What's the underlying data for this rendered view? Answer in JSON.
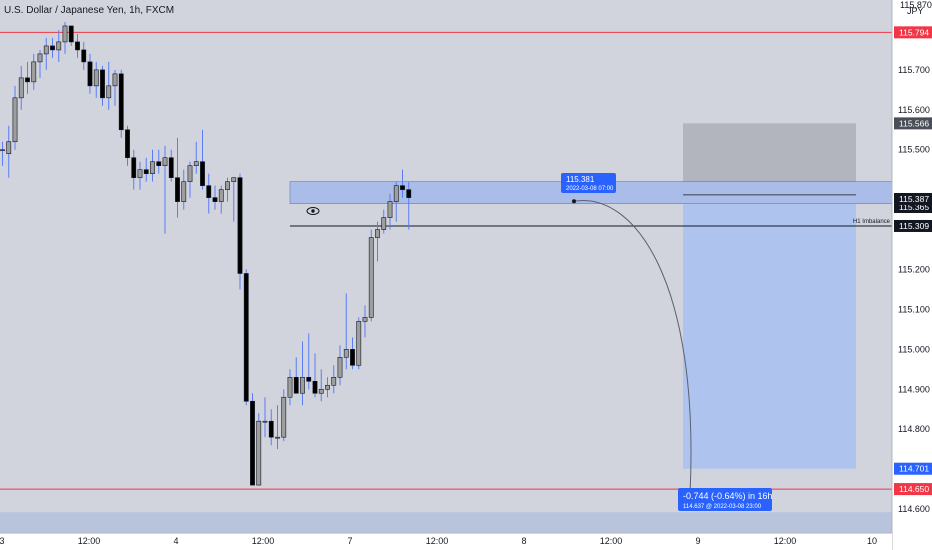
{
  "header": {
    "symbol_title": "U.S. Dollar / Japanese Yen, 1h, FXCM",
    "currency": "JPY",
    "top_price_partial": "115.870"
  },
  "colors": {
    "background": "#d1d4dc",
    "axis_background": "#ffffff",
    "candle_up": "#9e9e9e",
    "candle_down": "#000000",
    "wick": "#5b7cf7",
    "resistance_line": "#f23645",
    "zone_fill": "#a9bde8",
    "target_fill": "#aec4ee",
    "stop_fill": "#b2b5be",
    "label_blue": "#2962ff",
    "label_dark": "#131722",
    "label_red": "#f23645"
  },
  "chart_data": {
    "type": "candlestick",
    "y_axis": {
      "ticks": [
        115.7,
        115.6,
        115.5,
        115.2,
        115.1,
        115.0,
        114.9,
        114.8,
        114.6
      ],
      "ylim": [
        114.54,
        115.87
      ]
    },
    "x_axis": {
      "tick_labels": [
        "3",
        "12:00",
        "4",
        "12:00",
        "7",
        "12:00",
        "8",
        "12:00",
        "9",
        "12:00",
        "10"
      ]
    },
    "candles": [
      {
        "o": 115.5,
        "h": 115.52,
        "l": 115.46,
        "c": 115.5
      },
      {
        "o": 115.49,
        "h": 115.56,
        "l": 115.43,
        "c": 115.52
      },
      {
        "o": 115.52,
        "h": 115.66,
        "l": 115.5,
        "c": 115.63
      },
      {
        "o": 115.63,
        "h": 115.71,
        "l": 115.6,
        "c": 115.68
      },
      {
        "o": 115.68,
        "h": 115.72,
        "l": 115.64,
        "c": 115.67
      },
      {
        "o": 115.67,
        "h": 115.74,
        "l": 115.65,
        "c": 115.72
      },
      {
        "o": 115.72,
        "h": 115.75,
        "l": 115.68,
        "c": 115.74
      },
      {
        "o": 115.74,
        "h": 115.78,
        "l": 115.7,
        "c": 115.76
      },
      {
        "o": 115.76,
        "h": 115.78,
        "l": 115.73,
        "c": 115.75
      },
      {
        "o": 115.75,
        "h": 115.8,
        "l": 115.72,
        "c": 115.77
      },
      {
        "o": 115.77,
        "h": 115.82,
        "l": 115.74,
        "c": 115.81
      },
      {
        "o": 115.81,
        "h": 115.81,
        "l": 115.76,
        "c": 115.77
      },
      {
        "o": 115.77,
        "h": 115.79,
        "l": 115.73,
        "c": 115.75
      },
      {
        "o": 115.75,
        "h": 115.77,
        "l": 115.7,
        "c": 115.72
      },
      {
        "o": 115.72,
        "h": 115.74,
        "l": 115.64,
        "c": 115.66
      },
      {
        "o": 115.66,
        "h": 115.72,
        "l": 115.63,
        "c": 115.7
      },
      {
        "o": 115.7,
        "h": 115.71,
        "l": 115.61,
        "c": 115.63
      },
      {
        "o": 115.63,
        "h": 115.72,
        "l": 115.6,
        "c": 115.66
      },
      {
        "o": 115.66,
        "h": 115.7,
        "l": 115.61,
        "c": 115.69
      },
      {
        "o": 115.69,
        "h": 115.7,
        "l": 115.53,
        "c": 115.55
      },
      {
        "o": 115.55,
        "h": 115.56,
        "l": 115.46,
        "c": 115.48
      },
      {
        "o": 115.48,
        "h": 115.5,
        "l": 115.4,
        "c": 115.43
      },
      {
        "o": 115.43,
        "h": 115.47,
        "l": 115.4,
        "c": 115.45
      },
      {
        "o": 115.45,
        "h": 115.48,
        "l": 115.42,
        "c": 115.44
      },
      {
        "o": 115.44,
        "h": 115.5,
        "l": 115.42,
        "c": 115.47
      },
      {
        "o": 115.47,
        "h": 115.5,
        "l": 115.44,
        "c": 115.46
      },
      {
        "o": 115.46,
        "h": 115.51,
        "l": 115.29,
        "c": 115.48
      },
      {
        "o": 115.48,
        "h": 115.5,
        "l": 115.42,
        "c": 115.43
      },
      {
        "o": 115.43,
        "h": 115.53,
        "l": 115.33,
        "c": 115.37
      },
      {
        "o": 115.37,
        "h": 115.45,
        "l": 115.35,
        "c": 115.42
      },
      {
        "o": 115.42,
        "h": 115.47,
        "l": 115.38,
        "c": 115.46
      },
      {
        "o": 115.46,
        "h": 115.52,
        "l": 115.44,
        "c": 115.47
      },
      {
        "o": 115.47,
        "h": 115.55,
        "l": 115.4,
        "c": 115.41
      },
      {
        "o": 115.41,
        "h": 115.44,
        "l": 115.34,
        "c": 115.38
      },
      {
        "o": 115.38,
        "h": 115.41,
        "l": 115.35,
        "c": 115.37
      },
      {
        "o": 115.37,
        "h": 115.41,
        "l": 115.34,
        "c": 115.4
      },
      {
        "o": 115.4,
        "h": 115.43,
        "l": 115.37,
        "c": 115.42
      },
      {
        "o": 115.42,
        "h": 115.43,
        "l": 115.32,
        "c": 115.43
      },
      {
        "o": 115.43,
        "h": 115.44,
        "l": 115.15,
        "c": 115.19
      },
      {
        "o": 115.19,
        "h": 115.2,
        "l": 114.86,
        "c": 114.87
      },
      {
        "o": 114.87,
        "h": 114.89,
        "l": 114.66,
        "c": 114.66
      },
      {
        "o": 114.66,
        "h": 114.84,
        "l": 114.66,
        "c": 114.82
      },
      {
        "o": 114.82,
        "h": 114.88,
        "l": 114.78,
        "c": 114.82
      },
      {
        "o": 114.82,
        "h": 114.85,
        "l": 114.76,
        "c": 114.78
      },
      {
        "o": 114.78,
        "h": 114.86,
        "l": 114.75,
        "c": 114.78
      },
      {
        "o": 114.78,
        "h": 114.9,
        "l": 114.77,
        "c": 114.88
      },
      {
        "o": 114.88,
        "h": 114.95,
        "l": 114.86,
        "c": 114.93
      },
      {
        "o": 114.93,
        "h": 114.98,
        "l": 114.89,
        "c": 114.89
      },
      {
        "o": 114.89,
        "h": 115.02,
        "l": 114.86,
        "c": 114.93
      },
      {
        "o": 114.93,
        "h": 115.04,
        "l": 114.9,
        "c": 114.92
      },
      {
        "o": 114.92,
        "h": 114.99,
        "l": 114.88,
        "c": 114.89
      },
      {
        "o": 114.89,
        "h": 114.95,
        "l": 114.87,
        "c": 114.9
      },
      {
        "o": 114.9,
        "h": 114.93,
        "l": 114.88,
        "c": 114.91
      },
      {
        "o": 114.91,
        "h": 114.96,
        "l": 114.89,
        "c": 114.93
      },
      {
        "o": 114.93,
        "h": 115.01,
        "l": 114.91,
        "c": 114.98
      },
      {
        "o": 114.98,
        "h": 115.14,
        "l": 114.95,
        "c": 115.0
      },
      {
        "o": 115.0,
        "h": 115.03,
        "l": 114.95,
        "c": 114.96
      },
      {
        "o": 114.96,
        "h": 115.08,
        "l": 114.95,
        "c": 115.07
      },
      {
        "o": 115.07,
        "h": 115.11,
        "l": 115.03,
        "c": 115.08
      },
      {
        "o": 115.08,
        "h": 115.3,
        "l": 115.07,
        "c": 115.28
      },
      {
        "o": 115.28,
        "h": 115.32,
        "l": 115.22,
        "c": 115.3
      },
      {
        "o": 115.3,
        "h": 115.35,
        "l": 115.29,
        "c": 115.33
      },
      {
        "o": 115.33,
        "h": 115.39,
        "l": 115.3,
        "c": 115.37
      },
      {
        "o": 115.37,
        "h": 115.42,
        "l": 115.32,
        "c": 115.41
      },
      {
        "o": 115.41,
        "h": 115.45,
        "l": 115.38,
        "c": 115.4
      },
      {
        "o": 115.4,
        "h": 115.42,
        "l": 115.3,
        "c": 115.38
      }
    ],
    "annotations": {
      "resistance_high": 115.794,
      "support_low": 114.65,
      "imbalance_zone": [
        115.365,
        115.42
      ],
      "h1_imbalance_line": 115.309,
      "h1_imbalance_label": "H1 Imbalance",
      "bottom_zone": [
        114.54,
        114.592
      ],
      "projection": {
        "start_label": "115.381",
        "start_date": "2022-03-08 07:00",
        "end_price": 114.637,
        "change_text": "-0.744 (-0.64%) in 16h",
        "end_detail": "114.637 @ 2022-03-08 23:00"
      },
      "position": {
        "entry": 115.387,
        "stop": 115.566,
        "target": 114.701
      }
    },
    "price_labels": [
      {
        "text": "115.794",
        "price": 115.794,
        "color": "#f23645"
      },
      {
        "text": "115.566",
        "price": 115.566,
        "color": "#4a4e59"
      },
      {
        "text": "115.365",
        "price": 115.365,
        "color": "#131722"
      },
      {
        "text": "115.387",
        "price": 115.387,
        "color": "#131722"
      },
      {
        "text": "115.309",
        "price": 115.309,
        "color": "#131722"
      },
      {
        "text": "114.701",
        "price": 114.701,
        "color": "#2962ff"
      },
      {
        "text": "114.650",
        "price": 114.65,
        "color": "#f23645"
      }
    ]
  }
}
